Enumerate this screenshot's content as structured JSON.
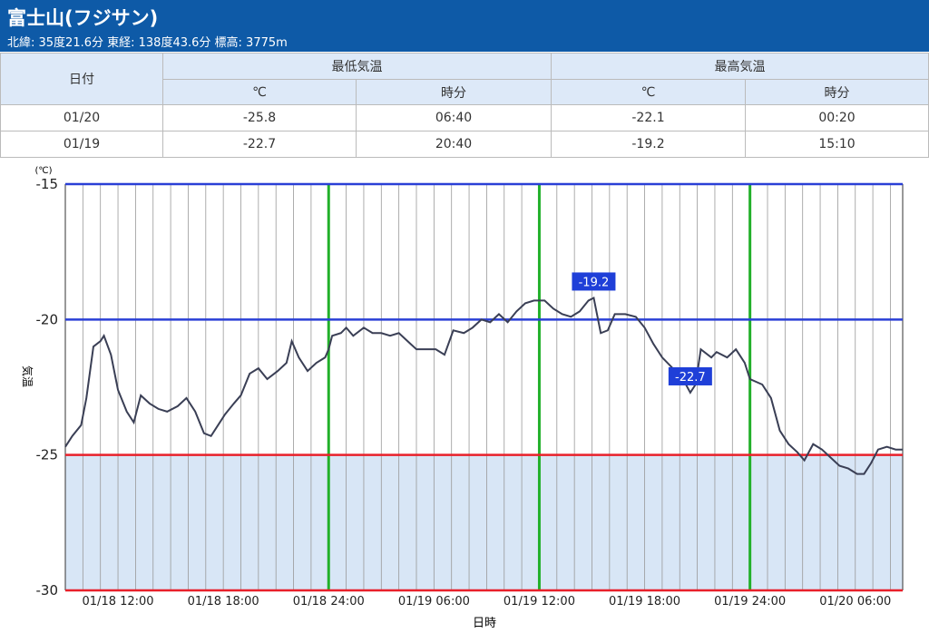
{
  "header": {
    "title": "富士山(フジサン)",
    "subtitle": "北緯: 35度21.6分 東経: 138度43.6分 標高: 3775m"
  },
  "table": {
    "date_header": "日付",
    "min_header": "最低気温",
    "max_header": "最高気温",
    "sub_headers": [
      "℃",
      "時分",
      "℃",
      "時分"
    ],
    "rows": [
      [
        "01/20",
        "-25.8",
        "06:40",
        "-22.1",
        "00:20"
      ],
      [
        "01/19",
        "-22.7",
        "20:40",
        "-19.2",
        "15:10"
      ]
    ]
  },
  "chart_data": {
    "type": "line",
    "ylabel": "気温",
    "yunit": "(℃)",
    "xlabel": "日時",
    "x": [
      9,
      9.4,
      9.9,
      10.2,
      10.6,
      11,
      11.2,
      11.6,
      12,
      12.5,
      12.9,
      13.3,
      13.8,
      14.3,
      14.8,
      15.4,
      15.9,
      16.4,
      16.9,
      17.3,
      17.7,
      18.1,
      18.6,
      19,
      19.5,
      20,
      20.5,
      21.1,
      21.6,
      21.9,
      22.3,
      22.8,
      23.3,
      23.8,
      24,
      24.2,
      24.7,
      25,
      25.4,
      26,
      26.5,
      27,
      27.5,
      28,
      28.5,
      29,
      29.6,
      30.1,
      30.6,
      31.1,
      31.7,
      32.2,
      32.7,
      33.2,
      33.7,
      34.2,
      34.7,
      35.2,
      35.7,
      36.3,
      36.8,
      37.3,
      37.8,
      38.3,
      38.8,
      39.1,
      39.5,
      39.9,
      40.3,
      40.9,
      41.5,
      42,
      42.5,
      43,
      43.6,
      44.1,
      44.6,
      44.9,
      45.2,
      45.8,
      46.1,
      46.7,
      47.2,
      47.7,
      48,
      48.7,
      49.2,
      49.7,
      50.2,
      50.7,
      51.1,
      51.6,
      52.1,
      52.6,
      53.1,
      53.6,
      54.1,
      54.5,
      54.9,
      55.3,
      55.8,
      56.3,
      56.7
    ],
    "series": [
      {
        "name": "気温",
        "color": "#3a3f55",
        "values": [
          -24.7,
          -24.3,
          -23.9,
          -22.9,
          -21,
          -20.8,
          -20.6,
          -21.3,
          -22.6,
          -23.4,
          -23.8,
          -22.8,
          -23.1,
          -23.3,
          -23.4,
          -23.2,
          -22.9,
          -23.4,
          -24.2,
          -24.3,
          -23.9,
          -23.5,
          -23.1,
          -22.8,
          -22,
          -21.8,
          -22.2,
          -21.9,
          -21.6,
          -20.8,
          -21.4,
          -21.9,
          -21.6,
          -21.4,
          -21.1,
          -20.6,
          -20.5,
          -20.3,
          -20.6,
          -20.3,
          -20.5,
          -20.5,
          -20.6,
          -20.5,
          -20.8,
          -21.1,
          -21.1,
          -21.1,
          -21.3,
          -20.4,
          -20.5,
          -20.3,
          -20,
          -20.1,
          -19.8,
          -20.1,
          -19.7,
          -19.4,
          -19.3,
          -19.3,
          -19.6,
          -19.8,
          -19.9,
          -19.7,
          -19.3,
          -19.2,
          -20.5,
          -20.4,
          -19.8,
          -19.8,
          -19.9,
          -20.3,
          -20.9,
          -21.4,
          -21.8,
          -22.1,
          -22.7,
          -22.4,
          -21.1,
          -21.4,
          -21.2,
          -21.4,
          -21.1,
          -21.6,
          -22.2,
          -22.4,
          -22.9,
          -24.1,
          -24.6,
          -24.9,
          -25.2,
          -24.6,
          -24.8,
          -25.1,
          -25.4,
          -25.5,
          -25.7,
          -25.7,
          -25.3,
          -24.8,
          -24.7,
          -24.8,
          -24.8
        ]
      }
    ],
    "annotations": [
      {
        "text": "-19.2",
        "x": 39.1,
        "y": -19.2
      },
      {
        "text": "-22.7",
        "x": 44.6,
        "y": -22.7
      }
    ],
    "xlim": [
      9,
      56.7
    ],
    "xticks": [
      {
        "value": 12,
        "label": "01/18 12:00"
      },
      {
        "value": 18,
        "label": "01/18 18:00"
      },
      {
        "value": 24,
        "label": "01/18 24:00"
      },
      {
        "value": 30,
        "label": "01/19 06:00"
      },
      {
        "value": 36,
        "label": "01/19 12:00"
      },
      {
        "value": 42,
        "label": "01/19 18:00"
      },
      {
        "value": 48,
        "label": "01/19 24:00"
      },
      {
        "value": 54,
        "label": "01/20 06:00"
      }
    ],
    "x_grid_step": 1,
    "highlight_x": [
      24,
      36,
      48
    ],
    "highlight_color": "#22b02a",
    "ylim": [
      -30,
      -15
    ],
    "yticks": [
      -15,
      -20,
      -25,
      -30
    ],
    "ytick_colors": [
      "#2a3fd6",
      "#2a3fd6",
      "#e8202a",
      "#e8202a"
    ],
    "shade_below": -25,
    "shade_color": "#d8e6f6",
    "annotation_color": "#1f3fd8"
  }
}
